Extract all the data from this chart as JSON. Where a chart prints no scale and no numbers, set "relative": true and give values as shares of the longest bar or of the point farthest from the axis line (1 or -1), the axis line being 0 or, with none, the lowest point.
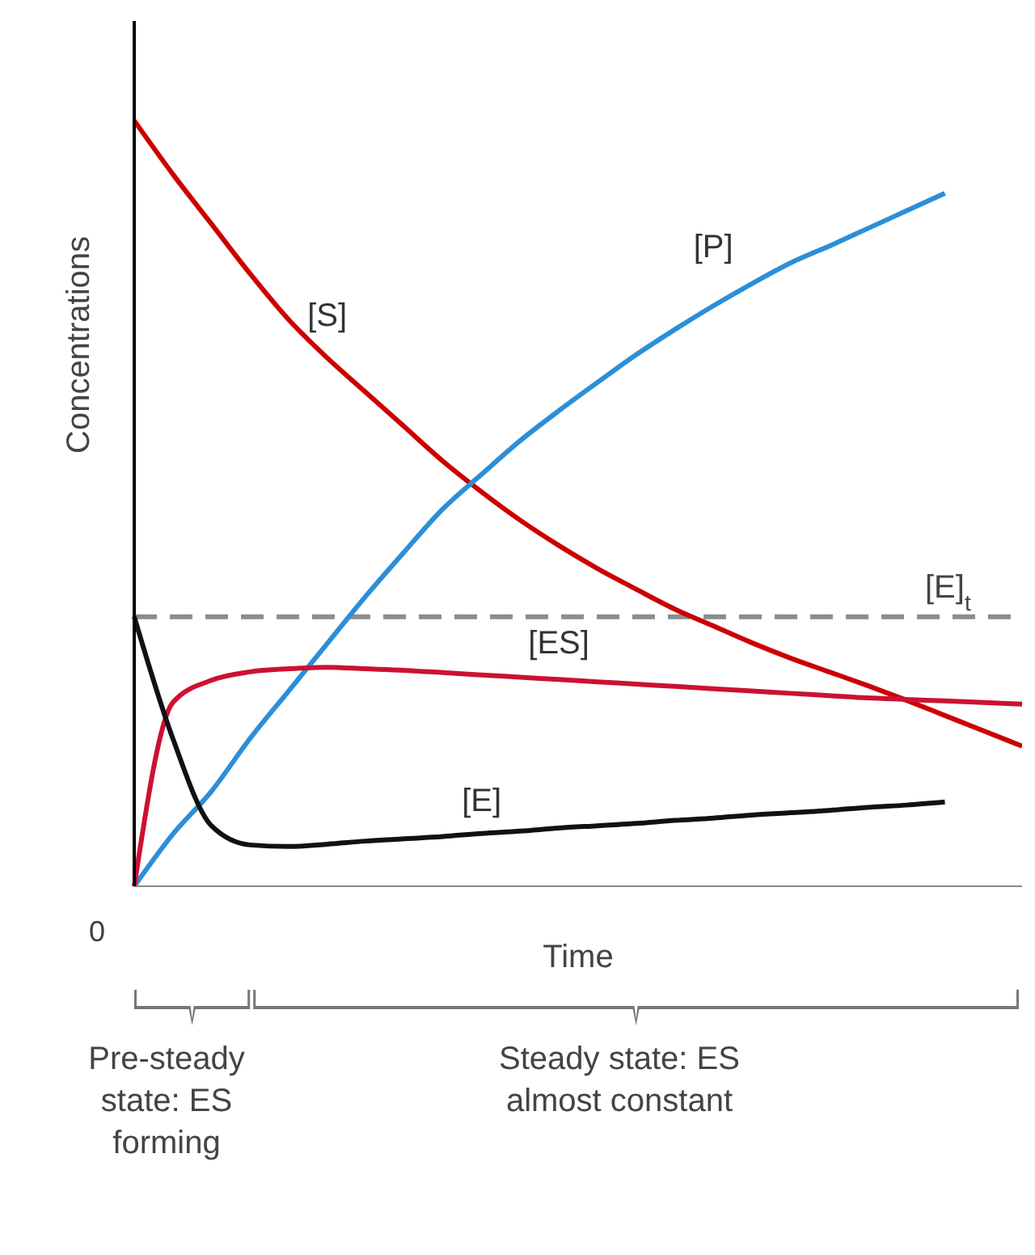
{
  "chart_data": {
    "type": "line",
    "relative": true,
    "xlabel": "Time",
    "ylabel": "Concentrations",
    "categories": [
      null,
      null,
      null,
      null,
      null,
      null,
      null,
      null,
      null,
      null,
      null,
      null,
      null,
      null,
      null,
      null,
      null,
      null,
      null,
      null,
      null,
      null,
      null,
      null
    ],
    "series": [
      {
        "name": "[S]",
        "color": "#cc0000",
        "values": [
          1.0,
          0.93,
          0.865,
          0.8,
          0.74,
          0.69,
          0.645,
          0.6,
          0.555,
          0.515,
          0.478,
          0.445,
          0.415,
          0.388,
          0.362,
          0.34,
          0.318,
          0.298,
          0.28,
          0.262,
          0.243,
          0.223,
          0.203,
          0.183
        ]
      },
      {
        "name": "[P]",
        "color": "#2b8fd8",
        "values": [
          0,
          0.068,
          0.124,
          0.193,
          0.255,
          0.317,
          0.379,
          0.437,
          0.493,
          0.538,
          0.582,
          0.621,
          0.658,
          0.694,
          0.727,
          0.758,
          0.787,
          0.814,
          0.836,
          0.859,
          0.882,
          0.905,
          null,
          null
        ]
      },
      {
        "name": "[ES]",
        "color": "#cc1133",
        "values": [
          0,
          0.24,
          0.269,
          0.28,
          0.284,
          0.286,
          0.284,
          0.282,
          0.279,
          0.276,
          0.273,
          0.27,
          0.267,
          0.264,
          0.261,
          0.258,
          0.255,
          0.252,
          0.249,
          0.246,
          0.244,
          0.242,
          0.24,
          0.238
        ]
      },
      {
        "name": "[E]",
        "color": "#111111",
        "values": [
          0.352,
          0.193,
          0.079,
          0.054,
          0.052,
          0.055,
          0.059,
          0.062,
          0.065,
          0.069,
          0.072,
          0.076,
          0.079,
          0.082,
          0.086,
          0.089,
          0.093,
          0.096,
          0.099,
          0.103,
          0.106,
          0.11,
          null,
          null
        ]
      }
    ],
    "ref_lines": [
      {
        "axis": "y",
        "value": 0.352,
        "label": "[E]$_{t}$",
        "color": "#8c8c8c",
        "line_style": "dashed"
      }
    ],
    "annotations": [
      "0",
      "Pre-steady state: ES forming",
      "Steady state: ES almost constant"
    ],
    "legend": false,
    "grid": false,
    "marker": "none",
    "line_style": "solid"
  }
}
